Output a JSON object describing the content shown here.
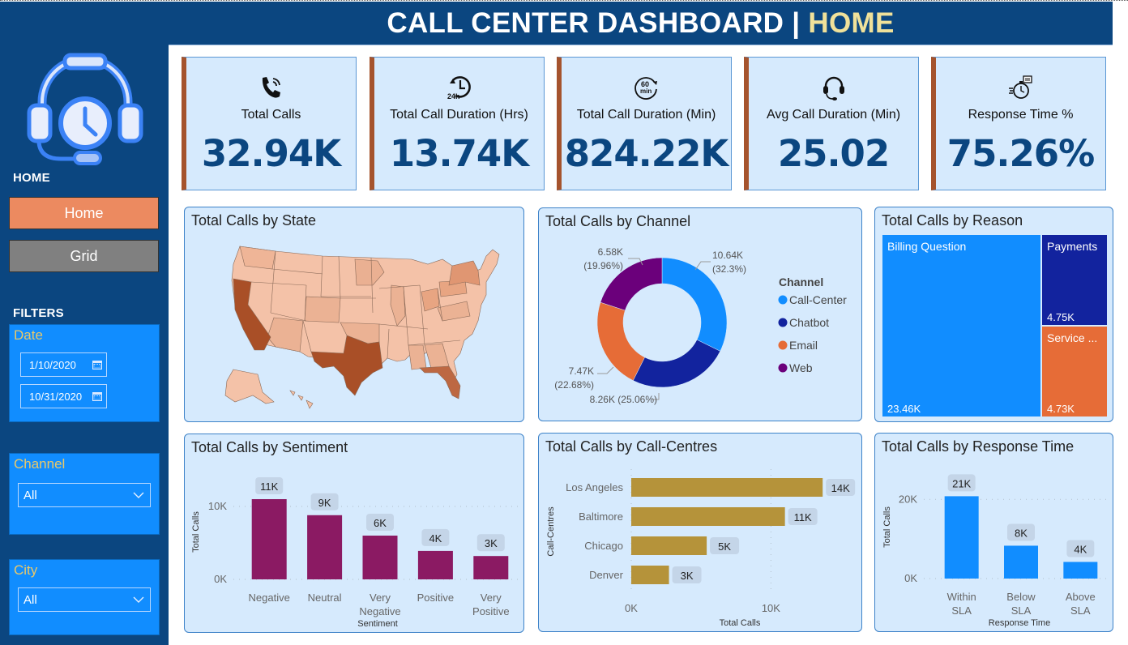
{
  "header": {
    "title_main": "CALL CENTER DASHBOARD |",
    "title_accent": "HOME"
  },
  "sidebar": {
    "logo_icon": "headset-clock-icon",
    "section_home": "HOME",
    "nav": [
      {
        "label": "Home",
        "active": true
      },
      {
        "label": "Grid",
        "active": false
      }
    ],
    "section_filters": "FILTERS",
    "filters": {
      "date": {
        "title": "Date",
        "start": "1/10/2020",
        "end": "10/31/2020"
      },
      "channel": {
        "title": "Channel",
        "value": "All"
      },
      "city": {
        "title": "City",
        "value": "All"
      }
    }
  },
  "kpis": [
    {
      "icon": "phone-ringing-icon",
      "label": "Total Calls",
      "value": "32.94K"
    },
    {
      "icon": "clock-24h-icon",
      "label": "Total Call Duration (Hrs)",
      "value": "13.74K"
    },
    {
      "icon": "timer-60min-icon",
      "label": "Total Call Duration (Min)",
      "value": "824.22K"
    },
    {
      "icon": "headset-icon",
      "label": "Avg Call Duration (Min)",
      "value": "25.02"
    },
    {
      "icon": "stopwatch-icon",
      "label": "Response Time %",
      "value": "75.26%"
    }
  ],
  "colors": {
    "navy": "#0b4680",
    "panel_bg": "#d6eafd",
    "kpi_accent": "#a5532d",
    "nav_active": "#ec8a60",
    "nav_inactive": "#808080",
    "filter_bg": "#118dff",
    "filter_title": "#e8c86a",
    "sentiment_bar": "#8b1a63",
    "callcentre_bar": "#b5933a",
    "response_bar": "#118dff"
  },
  "chart_data": [
    {
      "id": "state",
      "type": "map",
      "title": "Total Calls by State",
      "note": "US choropleth; darkest states: California, Texas, Florida; medium: New York",
      "highlight_states": [
        "California",
        "Texas",
        "Florida",
        "New York"
      ]
    },
    {
      "id": "channel",
      "type": "pie",
      "title": "Total Calls by Channel",
      "legend_title": "Channel",
      "legend_position": "right",
      "donut": true,
      "categories": [
        "Call-Center",
        "Chatbot",
        "Email",
        "Web"
      ],
      "values": [
        10640,
        8260,
        7470,
        6580
      ],
      "labels": [
        "10.64K (32.3%)",
        "8.26K (25.06%)",
        "7.47K (22.68%)",
        "6.58K (19.96%)"
      ],
      "label_lines": [
        [
          "10.64K",
          "(32.3%)"
        ],
        [
          "8.26K (25.06%)"
        ],
        [
          "7.47K",
          "(22.68%)"
        ],
        [
          "6.58K",
          "(19.96%)"
        ]
      ],
      "colors": [
        "#118dff",
        "#12239e",
        "#e66c37",
        "#6b007b"
      ]
    },
    {
      "id": "reason",
      "type": "treemap",
      "title": "Total Calls by Reason",
      "categories": [
        "Billing Question",
        "Payments",
        "Service ..."
      ],
      "values": [
        23460,
        4750,
        4730
      ],
      "labels": [
        "23.46K",
        "4.75K",
        "4.73K"
      ],
      "colors": [
        "#118dff",
        "#12239e",
        "#e66c37"
      ]
    },
    {
      "id": "sentiment",
      "type": "bar",
      "title": "Total Calls by Sentiment",
      "xlabel": "Sentiment",
      "ylabel": "Total Calls",
      "categories": [
        [
          "Negative"
        ],
        [
          "Neutral"
        ],
        [
          "Very",
          "Negative"
        ],
        [
          "Positive"
        ],
        [
          "Very",
          "Positive"
        ]
      ],
      "values": [
        11000,
        8800,
        6000,
        3900,
        3200
      ],
      "data_labels": [
        "11K",
        "9K",
        "6K",
        "4K",
        "3K"
      ],
      "yticks": [
        "0K",
        "10K"
      ],
      "ytick_values": [
        0,
        10000
      ],
      "ylim": [
        0,
        13000
      ],
      "color": "#8b1a63"
    },
    {
      "id": "callcentres",
      "type": "bar",
      "orientation": "horizontal",
      "title": "Total Calls by Call-Centres",
      "xlabel": "Total Calls",
      "ylabel": "Call-Centres",
      "categories": [
        "Los Angeles",
        "Baltimore",
        "Chicago",
        "Denver"
      ],
      "values": [
        13700,
        11000,
        5400,
        2700
      ],
      "data_labels": [
        "14K",
        "11K",
        "5K",
        "3K"
      ],
      "xticks": [
        "0K",
        "10K"
      ],
      "xtick_values": [
        0,
        10000
      ],
      "xlim": [
        0,
        14500
      ],
      "color": "#b5933a"
    },
    {
      "id": "response",
      "type": "bar",
      "title": "Total Calls by Response Time",
      "xlabel": "Response Time",
      "ylabel": "Total Calls",
      "categories": [
        [
          "Within",
          "SLA"
        ],
        [
          "Below",
          "SLA"
        ],
        [
          "Above",
          "SLA"
        ]
      ],
      "values": [
        20800,
        8300,
        4200
      ],
      "data_labels": [
        "21K",
        "8K",
        "4K"
      ],
      "yticks": [
        "0K",
        "20K"
      ],
      "ytick_values": [
        0,
        20000
      ],
      "ylim": [
        0,
        26000
      ],
      "color": "#118dff"
    }
  ]
}
